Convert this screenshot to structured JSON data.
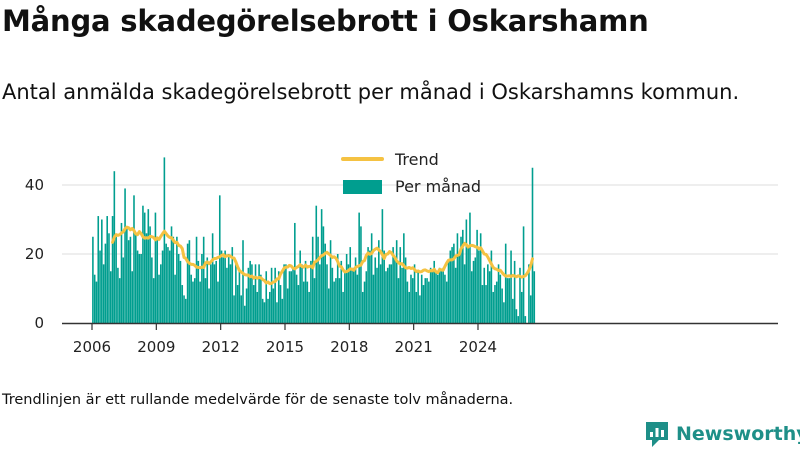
{
  "title": "Många skadegörelsebrott i Oskarshamn",
  "subtitle": "Antal anmälda skadegörelsebrott per månad i Oskarshamns kommun.",
  "footnote": "Trendlinjen är ett rullande medelvärde för de senaste tolv månaderna.",
  "brand": {
    "name": "Newsworthy",
    "icon": "newsworthy-logo-icon"
  },
  "colors": {
    "bars": "#009e8f",
    "trend": "#f5c242",
    "axis": "#333333",
    "grid": "#dddddd",
    "brand": "#1e8f88"
  },
  "chart_data": {
    "type": "bar",
    "x_start": "2006-01",
    "x_unit": "month",
    "xticks": [
      "2006",
      "2009",
      "2012",
      "2015",
      "2018",
      "2021",
      "2024"
    ],
    "yticks": [
      "0",
      "20",
      "40"
    ],
    "ylim": [
      0,
      50
    ],
    "grid": "horizontal",
    "legend_position": "top-center",
    "series": [
      {
        "name": "Per månad",
        "type": "bar",
        "values": [
          25,
          14,
          12,
          31,
          21,
          30,
          17,
          23,
          31,
          26,
          15,
          31,
          44,
          25,
          16,
          13,
          29,
          19,
          39,
          28,
          24,
          25,
          15,
          37,
          26,
          21,
          20,
          20,
          34,
          32,
          26,
          33,
          28,
          19,
          13,
          32,
          24,
          14,
          17,
          21,
          48,
          23,
          22,
          21,
          28,
          25,
          14,
          25,
          20,
          18,
          11,
          8,
          7,
          23,
          24,
          14,
          12,
          13,
          25,
          18,
          12,
          20,
          25,
          13,
          19,
          10,
          17,
          26,
          17,
          18,
          12,
          37,
          21,
          19,
          21,
          16,
          20,
          17,
          22,
          8,
          17,
          11,
          15,
          8,
          24,
          5,
          10,
          16,
          18,
          17,
          11,
          17,
          9,
          17,
          14,
          7,
          6,
          15,
          7,
          9,
          16,
          10,
          16,
          6,
          15,
          11,
          7,
          17,
          17,
          10,
          15,
          15,
          16,
          29,
          14,
          11,
          21,
          17,
          12,
          18,
          12,
          9,
          18,
          25,
          13,
          34,
          25,
          17,
          33,
          28,
          23,
          17,
          10,
          24,
          16,
          12,
          13,
          20,
          13,
          18,
          9,
          15,
          20,
          17,
          22,
          16,
          16,
          19,
          14,
          32,
          28,
          9,
          12,
          15,
          22,
          21,
          26,
          14,
          19,
          16,
          24,
          17,
          33,
          21,
          15,
          16,
          17,
          17,
          22,
          19,
          24,
          13,
          22,
          16,
          26,
          19,
          12,
          9,
          14,
          13,
          17,
          9,
          15,
          8,
          14,
          11,
          13,
          13,
          12,
          16,
          15,
          18,
          15,
          14,
          16,
          15,
          16,
          14,
          12,
          18,
          21,
          22,
          23,
          16,
          26,
          20,
          25,
          27,
          17,
          30,
          22,
          32,
          15,
          18,
          19,
          27,
          21,
          26,
          11,
          16,
          11,
          17,
          15,
          21,
          9,
          11,
          12,
          17,
          14,
          10,
          6,
          23,
          13,
          13,
          21,
          7,
          18,
          4,
          2,
          16,
          9,
          28,
          2,
          0,
          17,
          8,
          45,
          15
        ]
      },
      {
        "name": "Trend",
        "type": "line",
        "start_index": 11,
        "values": [
          23.4,
          24.9,
          25.6,
          25.4,
          25.6,
          26.1,
          26.4,
          27.3,
          27.8,
          27.6,
          27.0,
          27.4,
          26.8,
          25.8,
          25.6,
          26.5,
          25.9,
          25.0,
          24.6,
          24.7,
          24.6,
          25.1,
          25.0,
          24.8,
          24.1,
          24.7,
          24.2,
          25.1,
          25.9,
          26.6,
          25.9,
          25.2,
          24.8,
          24.7,
          24.0,
          23.3,
          23.4,
          22.5,
          22.3,
          21.6,
          19.0,
          18.7,
          17.8,
          17.3,
          17.0,
          17.0,
          16.7,
          16.2,
          16.1,
          16.0,
          16.2,
          16.1,
          17.4,
          17.7,
          17.2,
          17.7,
          18.3,
          18.7,
          18.7,
          19.0,
          19.2,
          19.6,
          19.8,
          19.2,
          19.5,
          19.5,
          19.4,
          18.9,
          18.8,
          17.7,
          16.3,
          15.2,
          14.8,
          14.4,
          14.0,
          13.9,
          13.9,
          13.4,
          13.6,
          13.0,
          13.3,
          13.0,
          13.2,
          13.1,
          12.6,
          12.3,
          11.6,
          11.9,
          11.4,
          11.5,
          11.9,
          12.0,
          12.8,
          12.8,
          14.2,
          15.0,
          15.9,
          16.2,
          16.2,
          16.7,
          16.5,
          15.9,
          15.7,
          16.1,
          16.4,
          16.9,
          16.4,
          16.2,
          16.8,
          16.2,
          16.4,
          16.5,
          16.0,
          17.6,
          17.9,
          18.3,
          19.0,
          19.5,
          19.7,
          20.2,
          20.5,
          20.0,
          19.6,
          19.0,
          19.2,
          18.8,
          17.8,
          16.5,
          16.3,
          15.4,
          14.8,
          14.9,
          15.2,
          15.7,
          15.6,
          15.3,
          16.1,
          16.4,
          16.6,
          16.8,
          17.8,
          18.1,
          19.6,
          20.3,
          19.9,
          20.2,
          21.0,
          21.4,
          21.7,
          21.2,
          20.7,
          19.8,
          18.7,
          19.9,
          20.0,
          20.7,
          20.4,
          19.6,
          19.0,
          18.0,
          17.5,
          17.1,
          17.2,
          16.6,
          16.0,
          15.9,
          16.1,
          15.8,
          16.0,
          15.5,
          14.9,
          15.1,
          14.8,
          14.9,
          15.3,
          15.4,
          15.1,
          14.9,
          15.2,
          15.1,
          15.6,
          14.8,
          14.6,
          15.5,
          15.4,
          15.3,
          16.4,
          17.4,
          18.2,
          18.3,
          18.3,
          18.6,
          19.4,
          19.6,
          19.8,
          21.5,
          22.3,
          23.1,
          22.7,
          22.0,
          22.4,
          22.5,
          22.4,
          22.1,
          22.0,
          21.5,
          21.8,
          20.9,
          20.0,
          19.9,
          19.1,
          18.1,
          17.1,
          16.1,
          15.7,
          15.6,
          15.2,
          15.3,
          14.6,
          14.0,
          13.6,
          13.6,
          13.7,
          13.5,
          13.8,
          13.6,
          13.4,
          13.7,
          13.5,
          13.3,
          13.5,
          13.7,
          14.4,
          15.3,
          16.6,
          18.6
        ]
      }
    ]
  }
}
